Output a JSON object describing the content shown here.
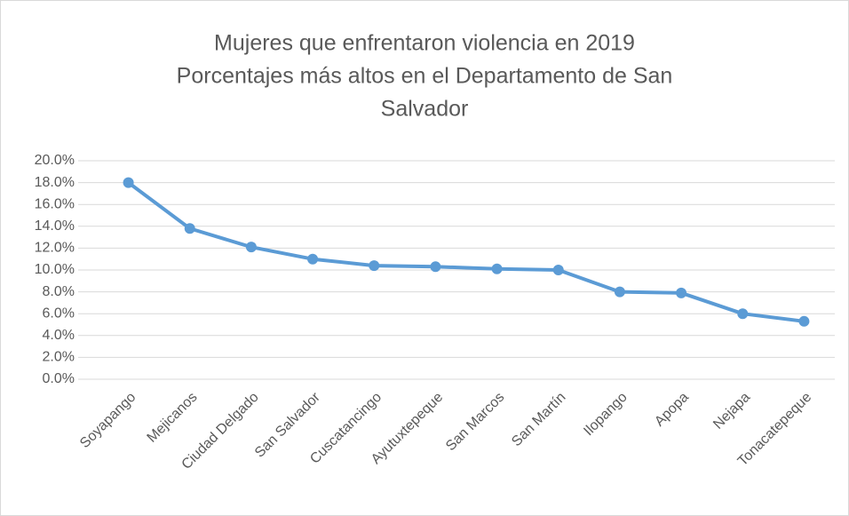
{
  "chart_data": {
    "type": "line",
    "title": [
      "Mujeres que enfrentaron violencia en 2019",
      "Porcentajes más altos en el Departamento de San",
      "Salvador"
    ],
    "categories": [
      "Soyapango",
      "Mejicanos",
      "Ciudad Delgado",
      "San Salvador",
      "Cuscatancingo",
      "Ayutuxtepeque",
      "San Marcos",
      "San Martín",
      "Ilopango",
      "Apopa",
      "Nejapa",
      "Tonacatepeque"
    ],
    "values": [
      18.0,
      13.8,
      12.1,
      11.0,
      10.4,
      10.3,
      10.1,
      10.0,
      8.0,
      7.9,
      6.0,
      5.3
    ],
    "color": "#5b9bd5",
    "ylim": [
      0,
      20
    ],
    "yticks": [
      {
        "value": 0,
        "label": "0.0%"
      },
      {
        "value": 2,
        "label": "2.0%"
      },
      {
        "value": 4,
        "label": "4.0%"
      },
      {
        "value": 6,
        "label": "6.0%"
      },
      {
        "value": 8,
        "label": "8.0%"
      },
      {
        "value": 10,
        "label": "10.0%"
      },
      {
        "value": 12,
        "label": "12.0%"
      },
      {
        "value": 14,
        "label": "14.0%"
      },
      {
        "value": 16,
        "label": "16.0%"
      },
      {
        "value": 18,
        "label": "18.0%"
      },
      {
        "value": 20,
        "label": "20.0%"
      }
    ],
    "grid": true
  }
}
